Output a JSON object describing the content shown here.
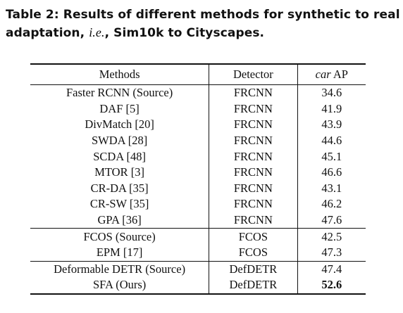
{
  "caption": {
    "lead": "Table 2: Results of different methods for synthetic to real adaptation, ",
    "ie": "i.e.",
    "tail": ", Sim10k to Cityscapes."
  },
  "table": {
    "headers": {
      "methods": "Methods",
      "detector": "Detector",
      "metric_italic": "car",
      "metric_rest": " AP"
    },
    "rows": [
      {
        "method": "Faster RCNN (Source)",
        "detector": "FRCNN",
        "ap": "34.6"
      },
      {
        "method": "DAF [5]",
        "detector": "FRCNN",
        "ap": "41.9"
      },
      {
        "method": "DivMatch [20]",
        "detector": "FRCNN",
        "ap": "43.9"
      },
      {
        "method": "SWDA [28]",
        "detector": "FRCNN",
        "ap": "44.6"
      },
      {
        "method": "SCDA [48]",
        "detector": "FRCNN",
        "ap": "45.1"
      },
      {
        "method": "MTOR [3]",
        "detector": "FRCNN",
        "ap": "46.6"
      },
      {
        "method": "CR-DA [35]",
        "detector": "FRCNN",
        "ap": "43.1"
      },
      {
        "method": "CR-SW [35]",
        "detector": "FRCNN",
        "ap": "46.2"
      },
      {
        "method": "GPA [36]",
        "detector": "FRCNN",
        "ap": "47.6"
      },
      {
        "method": "FCOS (Source)",
        "detector": "FCOS",
        "ap": "42.5"
      },
      {
        "method": "EPM [17]",
        "detector": "FCOS",
        "ap": "47.3"
      },
      {
        "method": "Deformable DETR (Source)",
        "detector": "DefDETR",
        "ap": "47.4"
      },
      {
        "method": "SFA (Ours)",
        "detector": "DefDETR",
        "ap": "52.6"
      }
    ]
  }
}
